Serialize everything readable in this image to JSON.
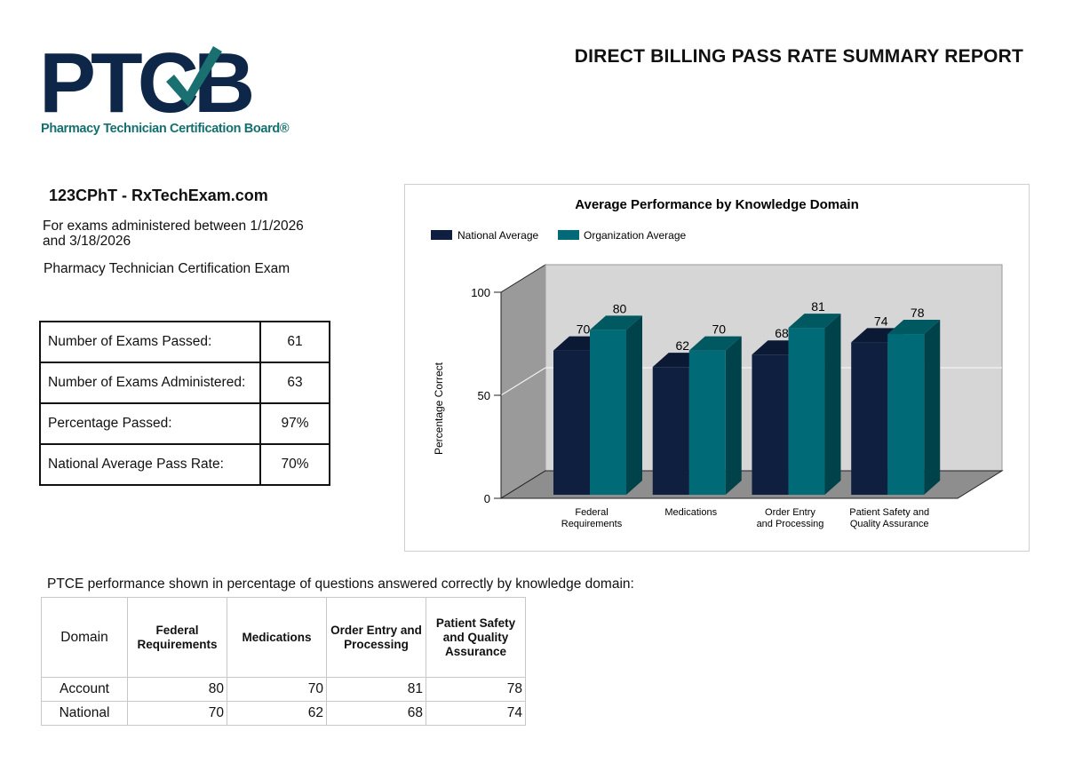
{
  "logo": {
    "letters": "PTCB",
    "tagline": "Pharmacy Technician Certification Board®",
    "navy": "#0e2748",
    "teal": "#1a6f70"
  },
  "report_title": "DIRECT BILLING PASS RATE SUMMARY REPORT",
  "organization": "123CPhT - RxTechExam.com",
  "date_range": "For exams administered between 1/1/2026 and 3/18/2026",
  "exam_name": "Pharmacy Technician Certification Exam",
  "summary": [
    {
      "label": "Number of Exams Passed:",
      "value": "61"
    },
    {
      "label": "Number of Exams Administered:",
      "value": "63"
    },
    {
      "label": "Percentage Passed:",
      "value": "97%"
    },
    {
      "label": "National Average Pass Rate:",
      "value": "70%"
    }
  ],
  "chart_data": {
    "type": "bar",
    "title": "Average Performance by Knowledge Domain",
    "ylabel": "Percentage Correct",
    "xlabel": "",
    "ylim": [
      0,
      100
    ],
    "yticks": [
      "0",
      "50",
      "100"
    ],
    "categories": [
      [
        "Federal",
        "Requirements"
      ],
      [
        "Medications"
      ],
      [
        "Order Entry",
        "and Processing"
      ],
      [
        "Patient Safety and",
        "Quality Assurance"
      ]
    ],
    "series": [
      {
        "name": "National Average",
        "values": [
          70,
          62,
          68,
          74
        ],
        "color": "#0e1f40"
      },
      {
        "name": "Organization Average",
        "values": [
          80,
          70,
          81,
          78
        ],
        "color": "#006b76"
      }
    ],
    "legend_position": "top-left",
    "grid": true
  },
  "domain_caption": "PTCE performance shown in percentage of questions answered correctly by knowledge domain:",
  "domain_table": {
    "header_label": "Domain",
    "columns": [
      "Federal Requirements",
      "Medications",
      "Order Entry and Processing",
      "Patient Safety and Quality Assurance"
    ],
    "rows": [
      {
        "name": "Account",
        "values": [
          "80",
          "70",
          "81",
          "78"
        ]
      },
      {
        "name": "National",
        "values": [
          "70",
          "62",
          "68",
          "74"
        ]
      }
    ]
  }
}
